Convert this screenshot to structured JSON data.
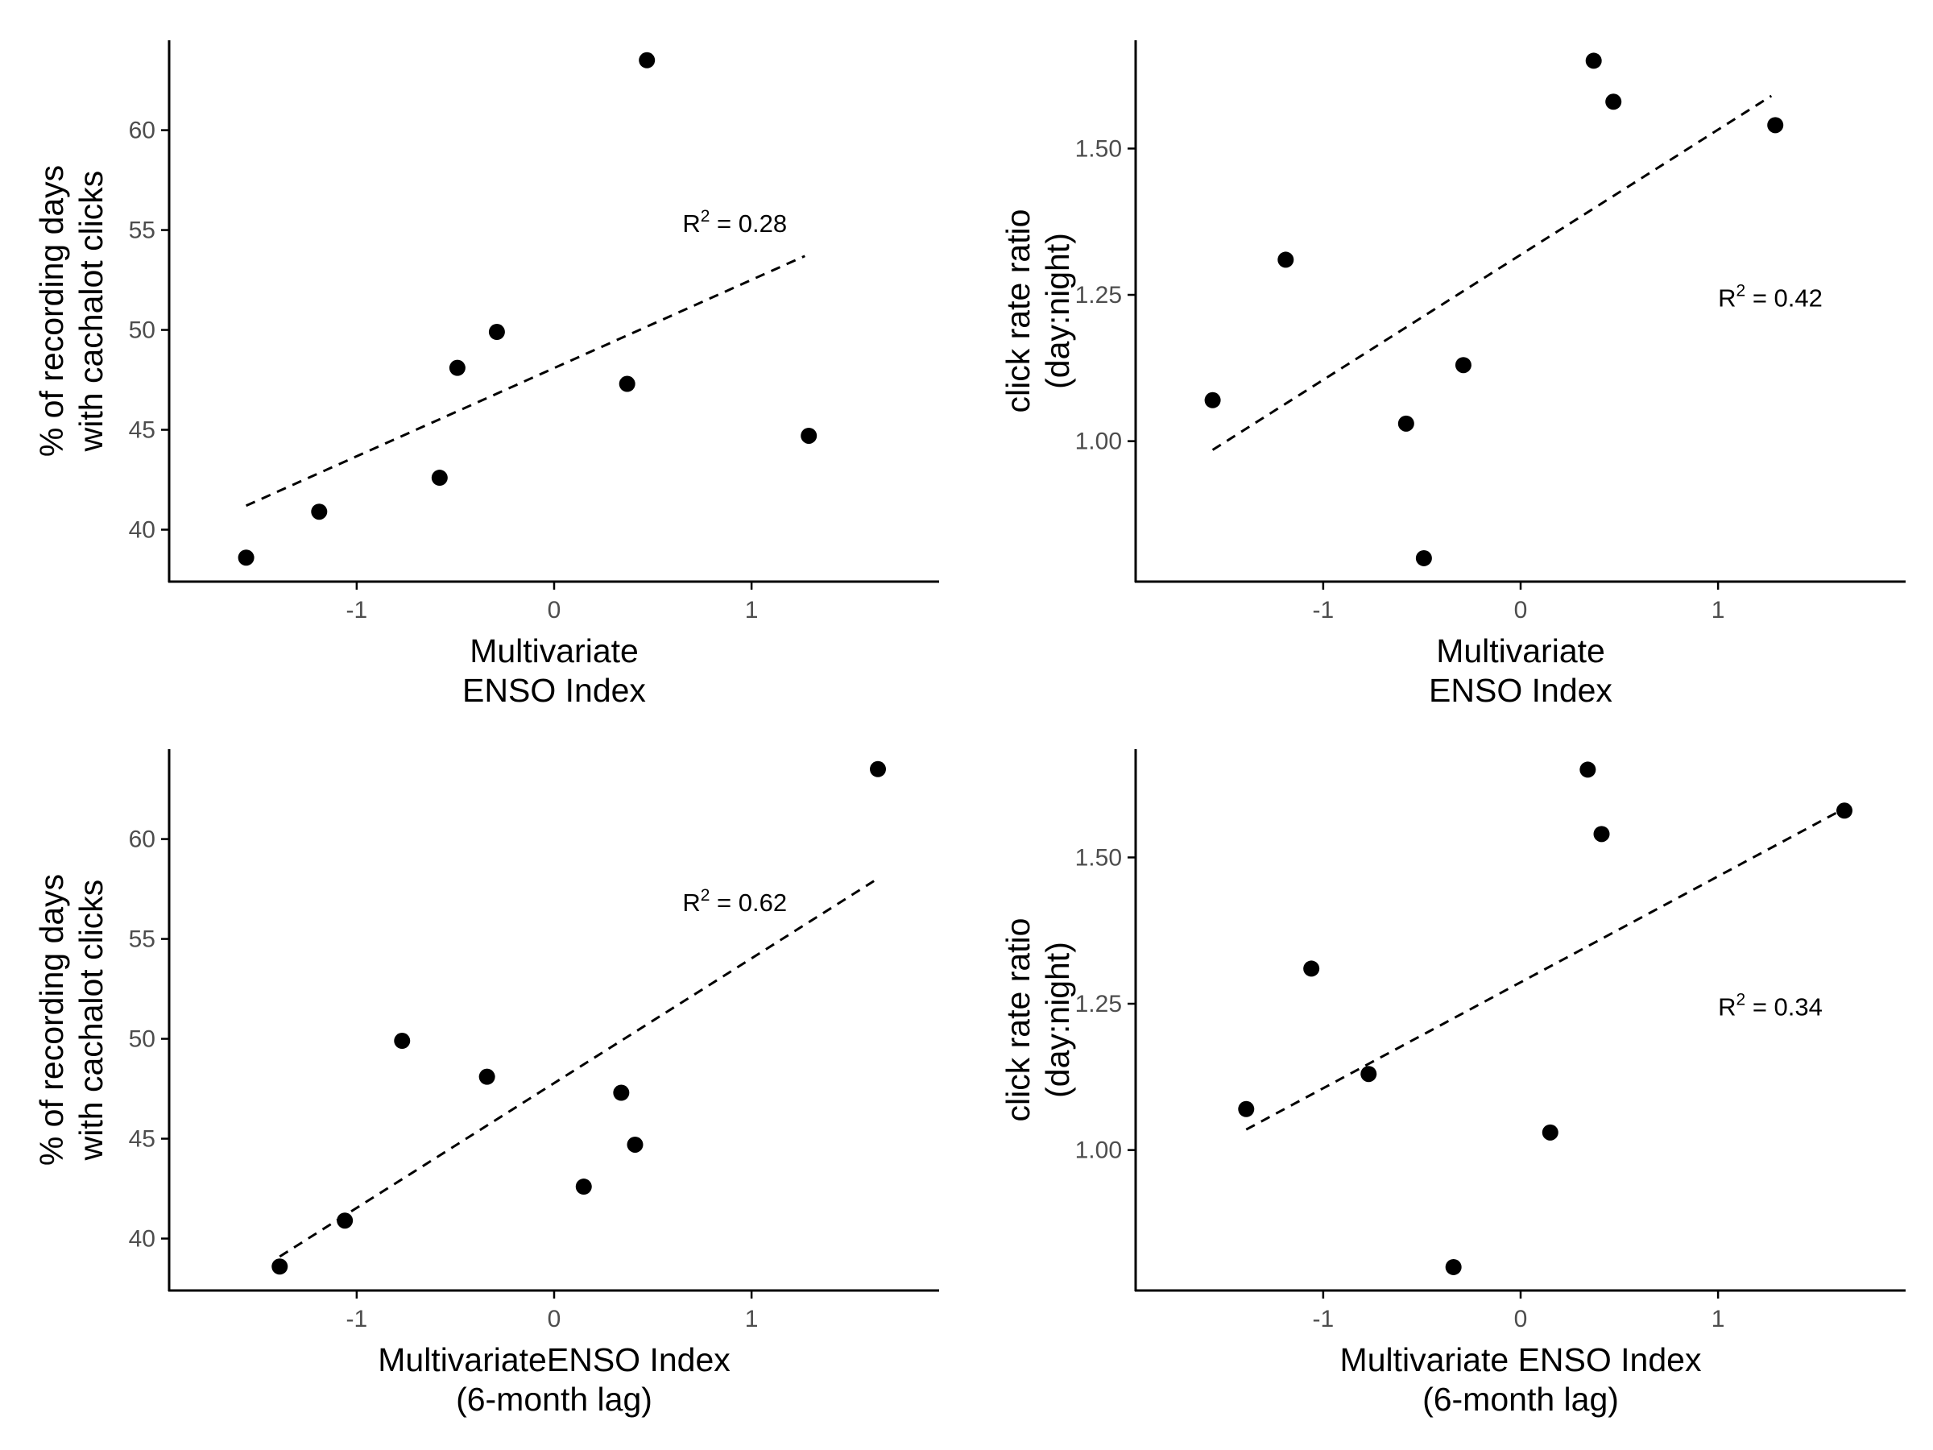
{
  "chart_data": [
    {
      "type": "scatter",
      "title": "",
      "xlabel": [
        "Multivariate",
        "ENSO Index"
      ],
      "ylabel": [
        "% of recording days",
        "with cachalot clicks"
      ],
      "xlim": [
        -1.95,
        1.95
      ],
      "ylim": [
        37.4,
        64.5
      ],
      "x_ticks": [
        -1,
        0,
        1
      ],
      "y_ticks": [
        40,
        45,
        50,
        55,
        60
      ],
      "y_tick_labels": [
        "40",
        "45",
        "50",
        "55",
        "60"
      ],
      "grid": false,
      "points": [
        {
          "x": -1.56,
          "y": 38.6
        },
        {
          "x": -1.19,
          "y": 40.9
        },
        {
          "x": -0.58,
          "y": 42.6
        },
        {
          "x": -0.49,
          "y": 48.1
        },
        {
          "x": -0.29,
          "y": 49.9
        },
        {
          "x": 0.37,
          "y": 47.3
        },
        {
          "x": 0.47,
          "y": 63.5
        },
        {
          "x": 1.29,
          "y": 44.7
        }
      ],
      "fit_line": {
        "x": [
          -1.56,
          1.27
        ],
        "y": [
          41.2,
          53.7
        ],
        "style": "dashed"
      },
      "annotation": {
        "base": "R",
        "superscript": "2",
        "text": " = 0.28",
        "x": 0.65,
        "y": 54.9
      }
    },
    {
      "type": "scatter",
      "title": "",
      "xlabel": [
        "Multivariate",
        "ENSO Index"
      ],
      "ylabel": [
        "click rate ratio",
        "(day:night)"
      ],
      "xlim": [
        -1.95,
        1.95
      ],
      "ylim": [
        0.76,
        1.685
      ],
      "x_ticks": [
        -1,
        0,
        1
      ],
      "y_ticks": [
        1.0,
        1.25,
        1.5
      ],
      "y_tick_labels": [
        "1.00",
        "1.25",
        "1.50"
      ],
      "grid": false,
      "points": [
        {
          "x": -1.56,
          "y": 1.07
        },
        {
          "x": -1.19,
          "y": 1.31
        },
        {
          "x": -0.58,
          "y": 1.03
        },
        {
          "x": -0.49,
          "y": 0.8
        },
        {
          "x": -0.29,
          "y": 1.13
        },
        {
          "x": 0.37,
          "y": 1.65
        },
        {
          "x": 0.47,
          "y": 1.58
        },
        {
          "x": 1.29,
          "y": 1.54
        }
      ],
      "fit_line": {
        "x": [
          -1.56,
          1.27
        ],
        "y": [
          0.985,
          1.59
        ],
        "style": "dashed"
      },
      "annotation": {
        "base": "R",
        "superscript": "2",
        "text": " = 0.42",
        "x": 1.0,
        "y": 1.23
      }
    },
    {
      "type": "scatter",
      "title": "",
      "xlabel": [
        "MultivariateENSO Index",
        "(6-month lag)"
      ],
      "ylabel": [
        "% of recording days",
        "with cachalot clicks"
      ],
      "xlim": [
        -1.95,
        1.95
      ],
      "ylim": [
        37.4,
        64.5
      ],
      "x_ticks": [
        -1,
        0,
        1
      ],
      "y_ticks": [
        40,
        45,
        50,
        55,
        60
      ],
      "y_tick_labels": [
        "40",
        "45",
        "50",
        "55",
        "60"
      ],
      "grid": false,
      "points": [
        {
          "x": -1.39,
          "y": 38.6
        },
        {
          "x": -1.06,
          "y": 40.9
        },
        {
          "x": -0.77,
          "y": 49.9
        },
        {
          "x": -0.34,
          "y": 48.1
        },
        {
          "x": 0.15,
          "y": 42.6
        },
        {
          "x": 0.34,
          "y": 47.3
        },
        {
          "x": 0.41,
          "y": 44.7
        },
        {
          "x": 1.64,
          "y": 63.5
        }
      ],
      "fit_line": {
        "x": [
          -1.39,
          1.62
        ],
        "y": [
          39.1,
          57.9
        ],
        "style": "dashed"
      },
      "annotation": {
        "base": "R",
        "superscript": "2",
        "text": " = 0.62",
        "x": 0.65,
        "y": 56.4
      }
    },
    {
      "type": "scatter",
      "title": "",
      "xlabel": [
        "Multivariate ENSO Index",
        "(6-month lag)"
      ],
      "ylabel": [
        "click rate ratio",
        "(day:night)"
      ],
      "xlim": [
        -1.95,
        1.95
      ],
      "ylim": [
        0.76,
        1.685
      ],
      "x_ticks": [
        -1,
        0,
        1
      ],
      "y_ticks": [
        1.0,
        1.25,
        1.5
      ],
      "y_tick_labels": [
        "1.00",
        "1.25",
        "1.50"
      ],
      "grid": false,
      "points": [
        {
          "x": -1.39,
          "y": 1.07
        },
        {
          "x": -1.06,
          "y": 1.31
        },
        {
          "x": -0.77,
          "y": 1.13
        },
        {
          "x": -0.34,
          "y": 0.8
        },
        {
          "x": 0.15,
          "y": 1.03
        },
        {
          "x": 0.34,
          "y": 1.65
        },
        {
          "x": 0.41,
          "y": 1.54
        },
        {
          "x": 1.64,
          "y": 1.58
        }
      ],
      "fit_line": {
        "x": [
          -1.39,
          1.62
        ],
        "y": [
          1.035,
          1.58
        ],
        "style": "dashed"
      },
      "annotation": {
        "base": "R",
        "superscript": "2",
        "text": " = 0.34",
        "x": 1.0,
        "y": 1.23
      }
    }
  ],
  "colors": {
    "points": "#000000",
    "axis": "#000000",
    "tick_text": "#4d4d4d",
    "fit_line": "#000000",
    "background": "#ffffff"
  }
}
